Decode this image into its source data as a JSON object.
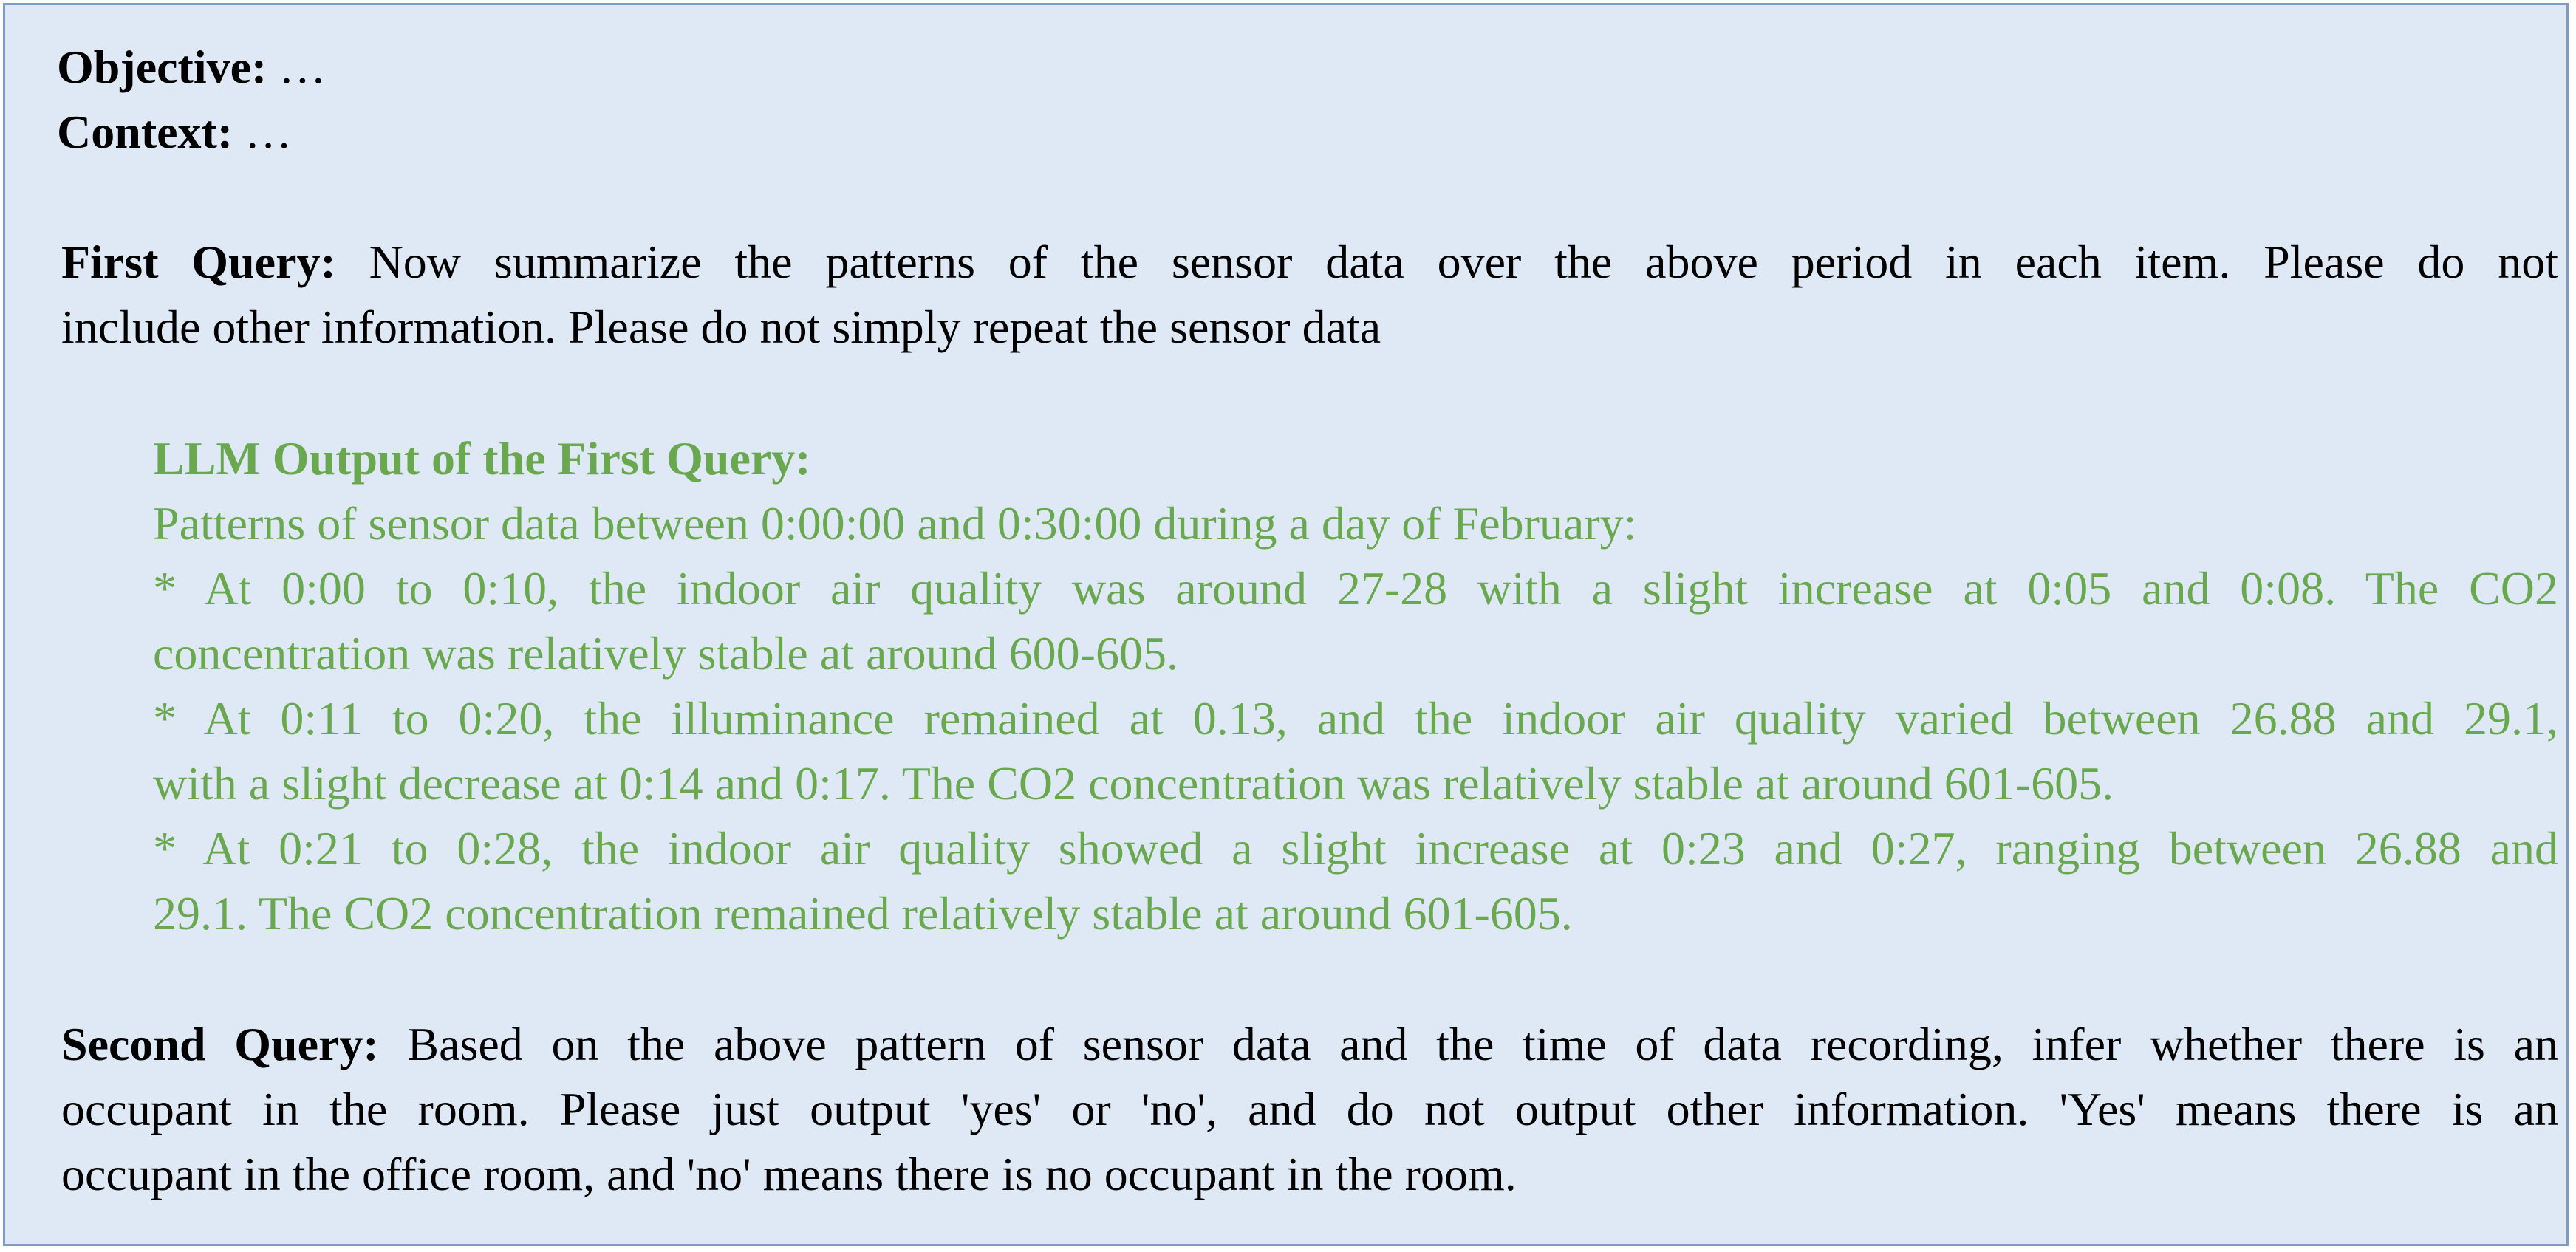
{
  "header": {
    "objective_label": "Objective:",
    "objective_value": " …",
    "context_label": "Context:",
    "context_value": " …"
  },
  "first_query": {
    "label": "First Query:",
    "line1": " Now summarize the patterns of the sensor data over the above period in each item. Please do not",
    "line2": "include other information. Please do not simply repeat the sensor data"
  },
  "llm_output": {
    "title": "LLM Output of the First Query:",
    "lines": [
      "Patterns of sensor data between 0:00:00 and 0:30:00 during a day of February:",
      "* At 0:00 to 0:10, the indoor air quality was around 27-28 with a slight increase at 0:05 and 0:08. The CO2",
      "concentration was relatively stable at around 600-605.",
      "* At 0:11 to 0:20, the illuminance remained at 0.13, and the indoor air quality varied between 26.88 and 29.1,",
      "with a slight decrease at 0:14 and 0:17. The CO2 concentration was relatively stable at around 601-605.",
      "* At 0:21 to 0:28, the indoor air quality showed a slight increase at 0:23 and 0:27, ranging between 26.88 and",
      "29.1. The CO2 concentration remained relatively stable at around 601-605."
    ]
  },
  "second_query": {
    "label": "Second Query:",
    "line1": " Based on the above pattern of sensor data and the time of data recording, infer whether there is an",
    "line2": "occupant in the room. Please just output 'yes' or 'no', and do not output other information. 'Yes' means there is an",
    "line3": "occupant in the office room, and 'no' means there is no occupant in the room."
  },
  "colors": {
    "panel_background": "#dfe9f5",
    "panel_border": "#7d9cc6",
    "llm_output_text": "#6aa84f"
  }
}
